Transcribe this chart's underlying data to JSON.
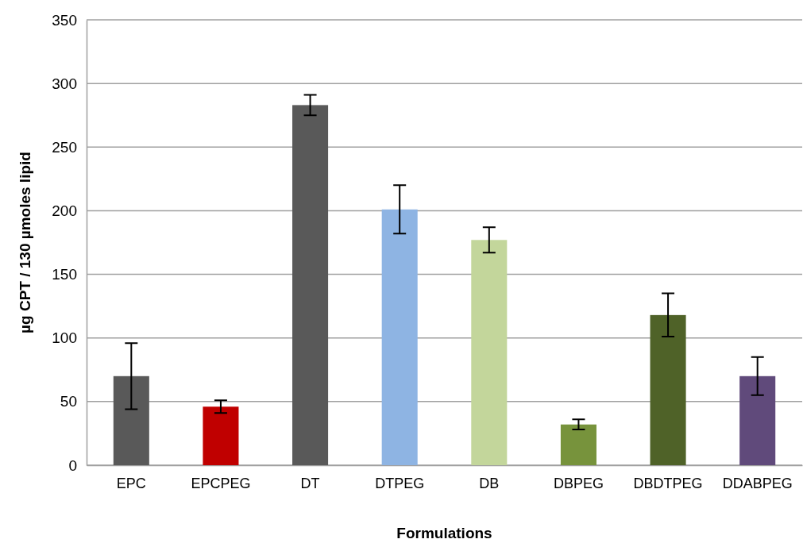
{
  "chart_data": {
    "type": "bar",
    "xlabel": "Formulations",
    "ylabel": "µg CPT / 130 µmoles lipid",
    "categories": [
      "EPC",
      "EPCPEG",
      "DT",
      "DTPEG",
      "DB",
      "DBPEG",
      "DBDTPEG",
      "DDABPEG"
    ],
    "values": [
      70,
      46,
      283,
      201,
      177,
      32,
      118,
      70
    ],
    "errors": [
      26,
      5,
      8,
      19,
      10,
      4,
      17,
      15
    ],
    "colors": [
      "#595959",
      "#c00000",
      "#595959",
      "#8eb4e3",
      "#c3d69b",
      "#77933c",
      "#4f6228",
      "#604a7b"
    ],
    "ylim": [
      0,
      350
    ],
    "yticks": [
      0,
      50,
      100,
      150,
      200,
      250,
      300,
      350
    ],
    "grid": "y"
  }
}
